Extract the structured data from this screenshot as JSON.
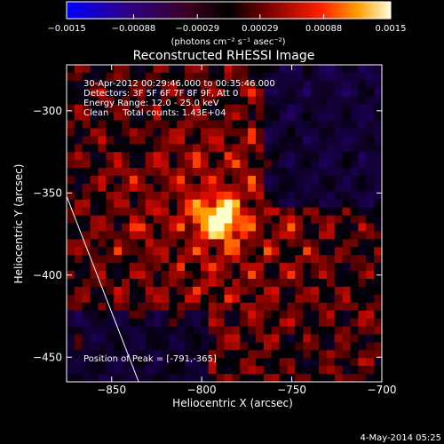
{
  "chart_data": {
    "type": "heatmap",
    "title": "Reconstructed RHESSI Image",
    "xlabel": "Heliocentric X (arcsec)",
    "ylabel": "Heliocentric Y (arcsec)",
    "xlim": [
      -875,
      -700
    ],
    "ylim": [
      -465,
      -272
    ],
    "x_ticks": [
      -850,
      -800,
      -750,
      -700
    ],
    "x_tick_labels": [
      "−850",
      "−800",
      "−750",
      "−700"
    ],
    "y_ticks": [
      -300,
      -350,
      -400,
      -450
    ],
    "y_tick_labels": [
      "−300",
      "−350",
      "−400",
      "−450"
    ],
    "colorbar": {
      "min": -0.0015,
      "max": 0.0015,
      "tick_values": [
        -0.0015,
        -0.00088,
        -0.00029,
        0.00029,
        0.00088,
        0.0015
      ],
      "tick_labels": [
        "−0.0015",
        "−0.00088",
        "−0.00029",
        "0.00029",
        "0.00088",
        "0.0015"
      ],
      "unit_label": "(photons cm⁻² s⁻¹ asec⁻²)"
    },
    "annotations": [
      "30-Apr-2012 00:29:46.000 to 00:35:46.000",
      "Detectors: 3F 5F 6F 7F 8F 9F, Att 0",
      "Energy Range: 12.0 - 25.0 keV",
      "Clean     Total counts: 1.43E+04"
    ],
    "peak": {
      "x": -791,
      "y": -365,
      "label": "Position of Peak = [-791,-365]"
    },
    "limb_line": [
      {
        "x": -875,
        "y": -352
      },
      {
        "x": -835,
        "y": -465
      }
    ],
    "timestamp": "4-May-2014 05:25"
  }
}
